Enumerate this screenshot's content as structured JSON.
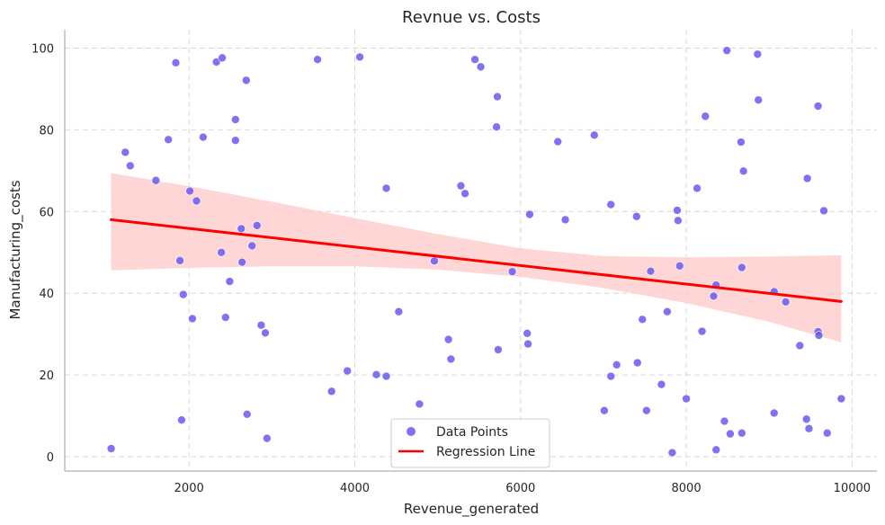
{
  "chart_data": {
    "type": "scatter",
    "title": "Revnue vs. Costs",
    "xlabel": "Revenue_generated",
    "ylabel": "Manufacturing_costs",
    "xlim": [
      500,
      10300
    ],
    "ylim": [
      -3.5,
      104.5
    ],
    "xticks": [
      2000,
      4000,
      6000,
      8000,
      10000
    ],
    "yticks": [
      0,
      20,
      40,
      60,
      80,
      100
    ],
    "grid": true,
    "legend_position": "bottom-center",
    "colors": {
      "points": "#6a5af0",
      "regression_line": "#ff0000",
      "confidence_band": "#ffcccc",
      "grid": "#d9d9d9",
      "axis": "#bdbdbd"
    },
    "series": [
      {
        "name": "Data Points",
        "type": "scatter",
        "x": [
          1060,
          1230,
          1290,
          1600,
          1750,
          1840,
          1890,
          1910,
          1930,
          2010,
          2040,
          2090,
          2170,
          2330,
          2390,
          2400,
          2440,
          2490,
          2560,
          2560,
          2630,
          2640,
          2690,
          2700,
          2760,
          2820,
          2870,
          2920,
          2940,
          3550,
          3720,
          3910,
          4060,
          4260,
          4380,
          4380,
          4530,
          4780,
          4960,
          5130,
          5160,
          5280,
          5330,
          5450,
          5520,
          5710,
          5720,
          5730,
          5900,
          6080,
          6090,
          6110,
          6450,
          6540,
          6890,
          7010,
          7090,
          7090,
          7160,
          7400,
          7410,
          7470,
          7520,
          7570,
          7700,
          7770,
          7830,
          7890,
          7900,
          7920,
          8000,
          8130,
          8190,
          8230,
          8330,
          8360,
          8360,
          8460,
          8490,
          8530,
          8660,
          8670,
          8670,
          8690,
          8860,
          8870,
          9060,
          9060,
          9200,
          9370,
          9450,
          9460,
          9480,
          9590,
          9590,
          9600,
          9660,
          9700,
          9870
        ],
        "y": [
          2,
          74.5,
          71.2,
          67.6,
          77.6,
          96.4,
          48,
          9,
          39.7,
          65,
          33.8,
          62.6,
          78.2,
          96.6,
          50,
          97.6,
          34.1,
          42.9,
          82.5,
          77.4,
          55.8,
          47.6,
          92.1,
          10.4,
          51.6,
          56.6,
          32.2,
          30.3,
          4.5,
          97.2,
          16,
          21,
          97.8,
          20.1,
          19.7,
          65.7,
          35.5,
          12.9,
          47.9,
          28.7,
          23.9,
          66.3,
          64.4,
          97.2,
          95.4,
          80.7,
          88.1,
          26.2,
          45.3,
          30.2,
          27.6,
          59.3,
          77.1,
          58,
          78.7,
          11.3,
          61.7,
          19.7,
          22.5,
          58.8,
          23,
          33.6,
          11.3,
          45.4,
          17.7,
          35.5,
          1,
          60.3,
          57.8,
          46.7,
          14.2,
          65.7,
          30.7,
          83.3,
          39.3,
          1.7,
          42,
          8.7,
          99.4,
          5.6,
          77,
          46.3,
          5.8,
          69.9,
          98.5,
          87.3,
          40.4,
          10.7,
          37.9,
          27.2,
          9.2,
          68.1,
          6.9,
          85.8,
          30.6,
          29.7,
          60.2,
          5.8,
          14.2
        ]
      },
      {
        "name": "Regression Line",
        "type": "line",
        "x": [
          1060,
          9870
        ],
        "y": [
          58,
          38
        ]
      }
    ],
    "confidence_band": {
      "x": [
        1060,
        2000,
        3000,
        4000,
        5000,
        6000,
        7000,
        8000,
        9000,
        9870
      ],
      "upper": [
        69.4,
        66.2,
        62.4,
        58.4,
        54.5,
        51,
        49.1,
        48.8,
        49,
        49.3
      ],
      "lower": [
        45.6,
        46.2,
        46.6,
        46.6,
        45.8,
        44,
        41.3,
        37.6,
        33,
        28
      ]
    },
    "legend": {
      "items": [
        {
          "label": "Data Points",
          "marker": "circle"
        },
        {
          "label": "Regression Line",
          "marker": "line"
        }
      ]
    }
  }
}
